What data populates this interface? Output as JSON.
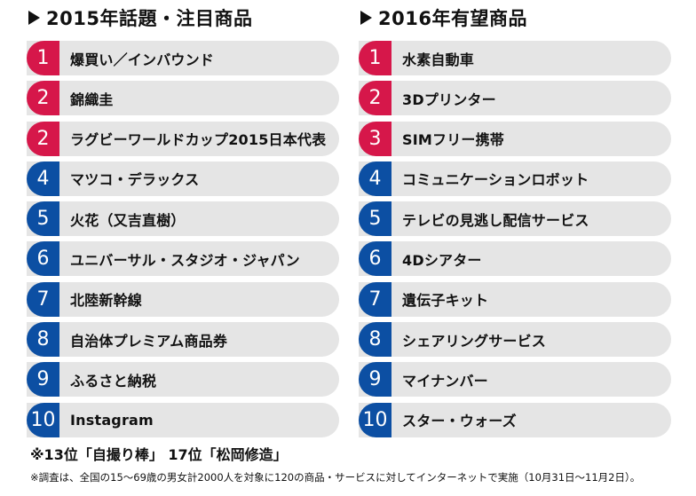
{
  "left": {
    "title": "2015年話題・注目商品",
    "items": [
      {
        "rank": "1",
        "label": "爆買い／インバウンド",
        "color": "red"
      },
      {
        "rank": "2",
        "label": "錦織圭",
        "color": "red"
      },
      {
        "rank": "2",
        "label": "ラグビーワールドカップ2015日本代表",
        "color": "red"
      },
      {
        "rank": "4",
        "label": "マツコ・デラックス",
        "color": "blue"
      },
      {
        "rank": "5",
        "label": "火花（又吉直樹）",
        "color": "blue"
      },
      {
        "rank": "6",
        "label": "ユニバーサル・スタジオ・ジャパン",
        "color": "blue"
      },
      {
        "rank": "7",
        "label": "北陸新幹線",
        "color": "blue"
      },
      {
        "rank": "8",
        "label": "自治体プレミアム商品券",
        "color": "blue"
      },
      {
        "rank": "9",
        "label": "ふるさと納税",
        "color": "blue"
      },
      {
        "rank": "10",
        "label": "Instagram",
        "color": "blue"
      }
    ]
  },
  "right": {
    "title": "2016年有望商品",
    "items": [
      {
        "rank": "1",
        "label": "水素自動車",
        "color": "red"
      },
      {
        "rank": "2",
        "label": "3Dプリンター",
        "color": "red"
      },
      {
        "rank": "3",
        "label": "SIMフリー携帯",
        "color": "red"
      },
      {
        "rank": "4",
        "label": "コミュニケーションロボット",
        "color": "blue"
      },
      {
        "rank": "5",
        "label": "テレビの見逃し配信サービス",
        "color": "blue"
      },
      {
        "rank": "6",
        "label": "4Dシアター",
        "color": "blue"
      },
      {
        "rank": "7",
        "label": "遺伝子キット",
        "color": "blue"
      },
      {
        "rank": "8",
        "label": "シェアリングサービス",
        "color": "blue"
      },
      {
        "rank": "9",
        "label": "マイナンバー",
        "color": "blue"
      },
      {
        "rank": "10",
        "label": "スター・ウォーズ",
        "color": "blue"
      }
    ]
  },
  "colors": {
    "red": "#d6174a",
    "blue": "#0c4fa3",
    "row_bg": "#e5e5e5"
  },
  "notes": {
    "extra": "※13位「自撮り棒」 17位「松岡修造」",
    "survey": "※調査は、全国の15～69歳の男女計2000人を対象に120の商品・サービスに対してインターネットで実施（10月31日～11月2日）。"
  }
}
